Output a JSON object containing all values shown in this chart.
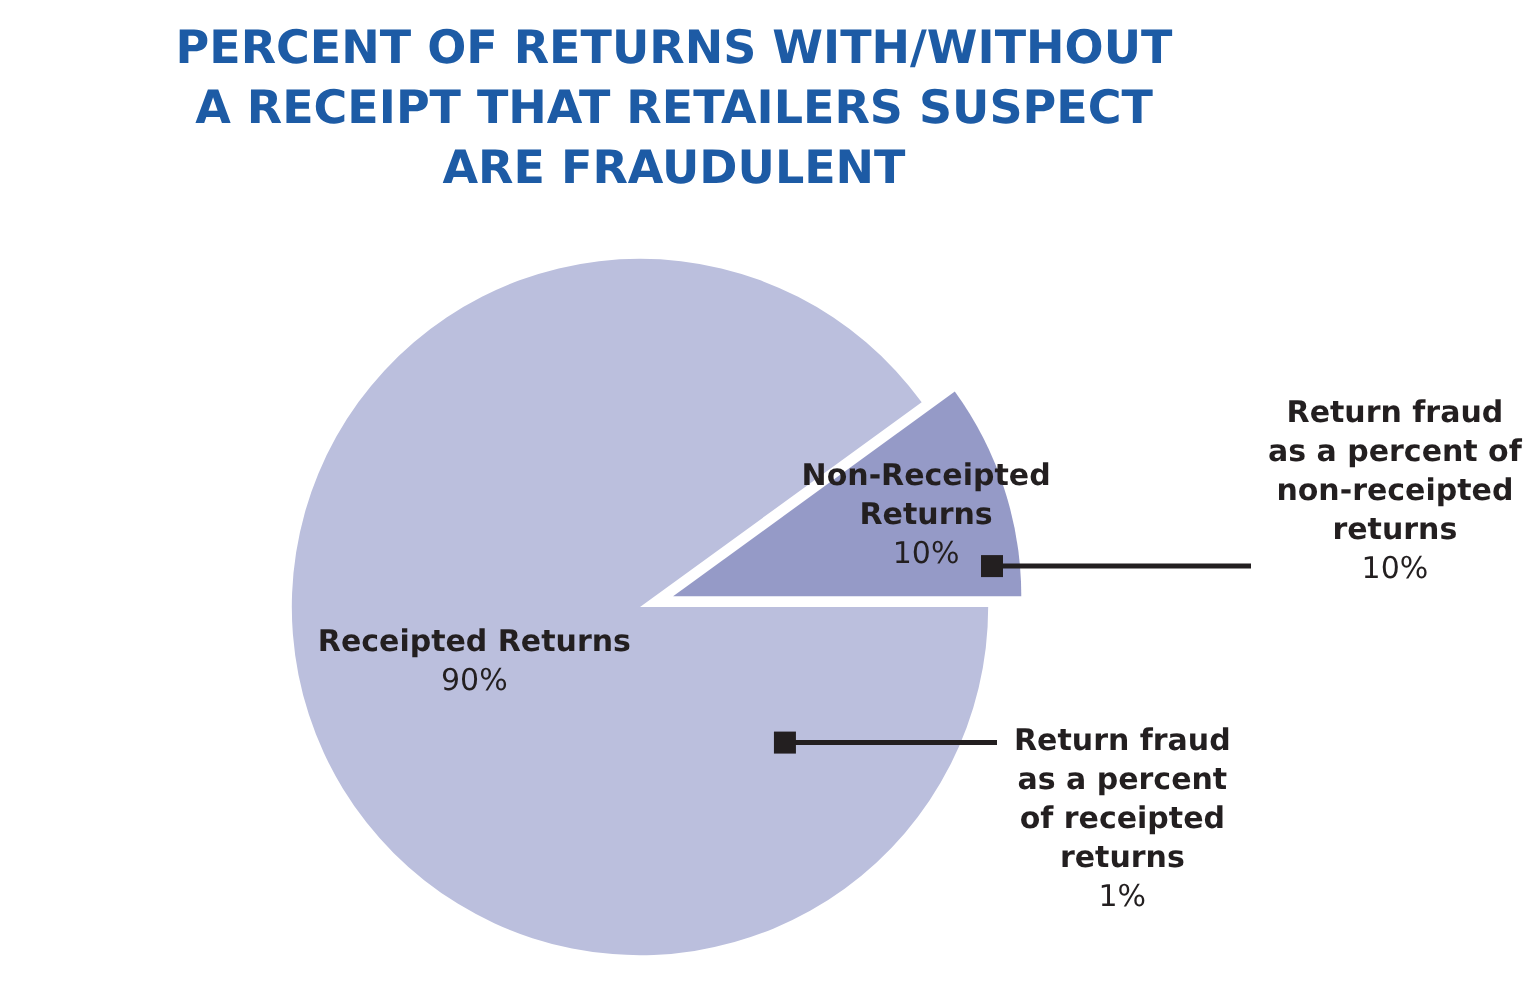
{
  "chart_data": {
    "type": "pie",
    "title": "PERCENT OF RETURNS WITH/WITHOUT A RECEIPT THAT RETAILERS SUSPECT ARE FRAUDULENT",
    "categories": [
      "Receipted Returns",
      "Non-Receipted Returns"
    ],
    "values": [
      90,
      10
    ],
    "value_labels": [
      "90%",
      "10%"
    ],
    "colors": [
      "#bbbfdd",
      "#959ac7"
    ],
    "annotations": [
      "Return fraud\nas a percent\nof receipted\nreturns\n1%",
      "Return fraud\nas a percent of\nnon-receipted\nreturns\n10%"
    ]
  }
}
